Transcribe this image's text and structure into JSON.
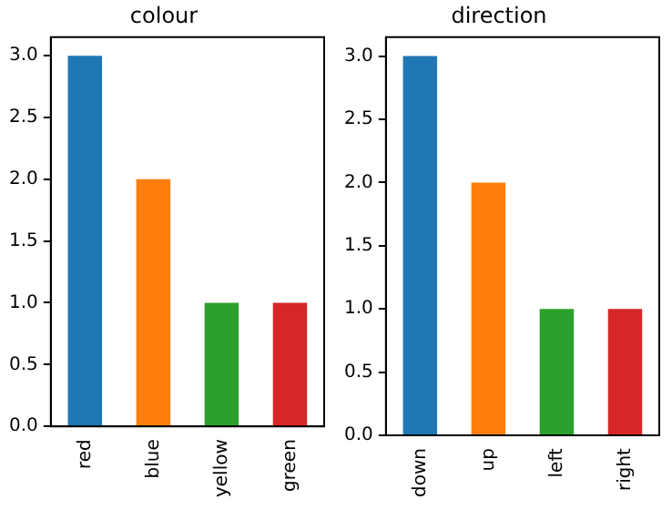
{
  "chart_data": [
    {
      "type": "bar",
      "title": "colour",
      "categories": [
        "red",
        "blue",
        "yellow",
        "green"
      ],
      "values": [
        3,
        2,
        1,
        1
      ],
      "colors": [
        "#1f77b4",
        "#ff7f0e",
        "#2ca02c",
        "#d62728"
      ],
      "ylim": [
        0,
        3.15
      ],
      "yticks": [
        {
          "value": 0,
          "label": "0.0"
        },
        {
          "value": 0.5,
          "label": "0.5"
        },
        {
          "value": 1,
          "label": "1.0"
        },
        {
          "value": 1.5,
          "label": "1.5"
        },
        {
          "value": 2,
          "label": "2.0"
        },
        {
          "value": 2.5,
          "label": "2.5"
        },
        {
          "value": 3,
          "label": "3.0"
        }
      ],
      "grid": false,
      "legend": false
    },
    {
      "type": "bar",
      "title": "direction",
      "categories": [
        "down",
        "up",
        "left",
        "right"
      ],
      "values": [
        3,
        2,
        1,
        1
      ],
      "colors": [
        "#1f77b4",
        "#ff7f0e",
        "#2ca02c",
        "#d62728"
      ],
      "ylim": [
        0,
        3.15
      ],
      "yticks": [
        {
          "value": 0,
          "label": "0.0"
        },
        {
          "value": 0.5,
          "label": "0.5"
        },
        {
          "value": 1,
          "label": "1.0"
        },
        {
          "value": 1.5,
          "label": "1.5"
        },
        {
          "value": 2,
          "label": "2.0"
        },
        {
          "value": 2.5,
          "label": "2.5"
        },
        {
          "value": 3,
          "label": "3.0"
        }
      ],
      "grid": false,
      "legend": false
    }
  ]
}
